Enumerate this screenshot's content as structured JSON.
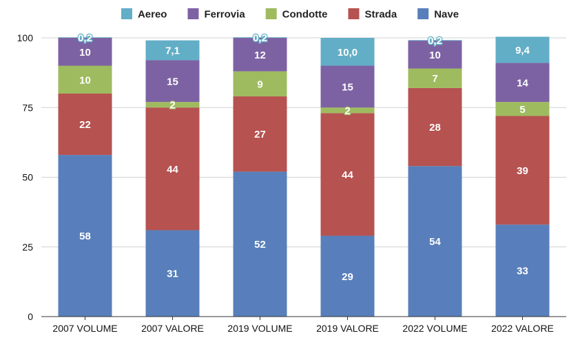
{
  "chart_data": {
    "type": "bar",
    "stacked": true,
    "categories": [
      "2007 VOLUME",
      "2007 VALORE",
      "2019 VOLUME",
      "2019 VALORE",
      "2022 VOLUME",
      "2022 VALORE"
    ],
    "series": [
      {
        "name": "Nave",
        "color": "#587fbb",
        "values": [
          58,
          31,
          52,
          29,
          54,
          33
        ],
        "labels": [
          "58",
          "31",
          "52",
          "29",
          "54",
          "33"
        ]
      },
      {
        "name": "Strada",
        "color": "#b65250",
        "values": [
          22,
          44,
          27,
          44,
          28,
          39
        ],
        "labels": [
          "22",
          "44",
          "27",
          "44",
          "28",
          "39"
        ]
      },
      {
        "name": "Condotte",
        "color": "#9fbb5f",
        "values": [
          10,
          2,
          9,
          2,
          7,
          5
        ],
        "labels": [
          "10",
          "2",
          "9",
          "2",
          "7",
          "5"
        ]
      },
      {
        "name": "Ferrovia",
        "color": "#7d62a3",
        "values": [
          10,
          15,
          12,
          15,
          10,
          14
        ],
        "labels": [
          "10",
          "15",
          "12",
          "15",
          "10",
          "14"
        ]
      },
      {
        "name": "Aereo",
        "color": "#62aec6",
        "values": [
          0.2,
          7.1,
          0.2,
          10.0,
          0.2,
          9.4
        ],
        "labels": [
          "0,2",
          "7,1",
          "0,2",
          "10,0",
          "0,2",
          "9,4"
        ]
      }
    ],
    "legend_order": [
      "Aereo",
      "Ferrovia",
      "Condotte",
      "Strada",
      "Nave"
    ],
    "legend_position": "top",
    "ylim": [
      0,
      100
    ],
    "yticks": [
      "0",
      "25",
      "50",
      "75",
      "100"
    ],
    "grid": true,
    "title": "",
    "xlabel": "",
    "ylabel": ""
  }
}
